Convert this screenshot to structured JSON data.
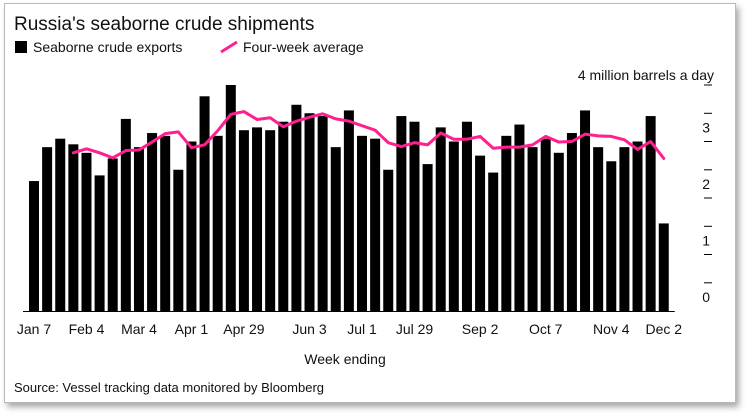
{
  "chart_data": {
    "type": "bar",
    "title": "Russia's seaborne crude shipments",
    "legend_position": "top-left",
    "unit_label": "4 million barrels a day",
    "xlabel": "Week ending",
    "source": "Source: Vessel tracking data monitored by Bloomberg",
    "ylim": [
      0,
      4
    ],
    "yticks": [
      0,
      1,
      2,
      3
    ],
    "grid": false,
    "x_tick_labels": [
      "Jan 7",
      "Feb 4",
      "Mar 4",
      "Apr 1",
      "Apr 29",
      "Jun 3",
      "Jul 1",
      "Jul 29",
      "Sep 2",
      "Oct 7",
      "Nov 4",
      "Dec 2"
    ],
    "x_tick_bar_index": [
      0,
      4,
      8,
      12,
      16,
      21,
      25,
      29,
      34,
      39,
      44,
      48
    ],
    "bar_color": "#000000",
    "line_color": "#ff1f8e",
    "series": [
      {
        "name": "Seaborne crude exports",
        "values": [
          2.3,
          2.9,
          3.05,
          2.95,
          2.8,
          2.4,
          2.7,
          3.4,
          2.9,
          3.15,
          3.1,
          2.5,
          3.0,
          3.8,
          3.1,
          4.0,
          3.2,
          3.25,
          3.2,
          3.35,
          3.65,
          3.5,
          3.45,
          2.9,
          3.55,
          3.1,
          3.05,
          2.5,
          3.45,
          3.35,
          2.6,
          3.25,
          3.0,
          3.35,
          2.75,
          2.45,
          3.1,
          3.3,
          2.9,
          3.05,
          2.8,
          3.15,
          3.55,
          2.9,
          2.65,
          2.9,
          3.0,
          3.45,
          1.55
        ]
      },
      {
        "name": "Four-week average",
        "values": [
          null,
          null,
          null,
          2.8,
          2.87,
          2.8,
          2.71,
          2.84,
          2.85,
          2.99,
          3.14,
          3.17,
          2.89,
          2.94,
          3.19,
          3.48,
          3.53,
          3.39,
          3.42,
          3.26,
          3.36,
          3.43,
          3.49,
          3.4,
          3.36,
          3.28,
          3.2,
          2.98,
          2.91,
          2.98,
          2.94,
          3.15,
          3.04,
          3.04,
          3.09,
          2.88,
          2.9,
          2.9,
          2.94,
          3.09,
          2.99,
          3.0,
          3.13,
          3.1,
          3.09,
          3.03,
          2.86,
          3.0,
          2.7
        ]
      }
    ]
  }
}
